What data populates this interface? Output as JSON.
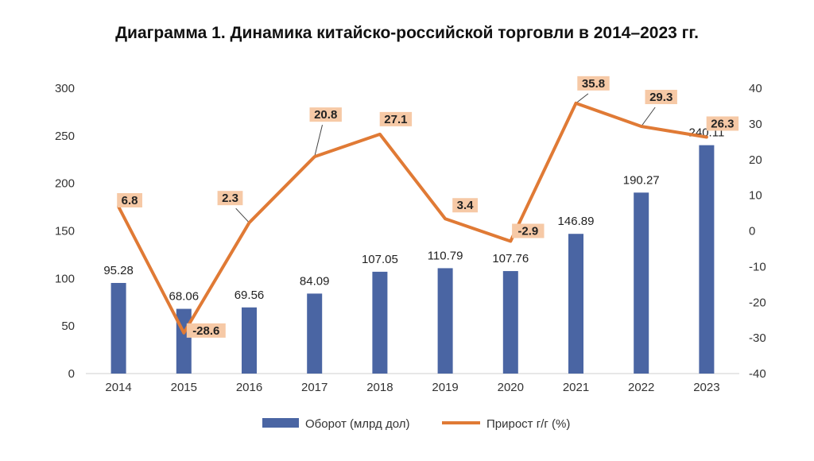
{
  "chart_data": {
    "type": "bar",
    "title": "Диаграмма 1. Динамика китайско-российской торговли в 2014–2023 гг.",
    "categories": [
      "2014",
      "2015",
      "2016",
      "2017",
      "2018",
      "2019",
      "2020",
      "2021",
      "2022",
      "2023"
    ],
    "series": [
      {
        "name": "Оборот (млрд дол)",
        "type": "bar",
        "axis": "left",
        "color": "#4a65a3",
        "values": [
          95.28,
          68.06,
          69.56,
          84.09,
          107.05,
          110.79,
          107.76,
          146.89,
          190.27,
          240.11
        ],
        "labels": [
          "95.28",
          "68.06",
          "69.56",
          "84.09",
          "107.05",
          "110.79",
          "107.76",
          "146.89",
          "190.27",
          "240.11"
        ]
      },
      {
        "name": "Прирост г/г (%)",
        "type": "line",
        "axis": "right",
        "color": "#e07a35",
        "values": [
          6.8,
          -28.6,
          2.3,
          20.8,
          27.1,
          3.4,
          -2.9,
          35.8,
          29.3,
          26.3
        ],
        "labels": [
          "6.8",
          "-28.6",
          "2.3",
          "20.8",
          "27.1",
          "3.4",
          "-2.9",
          "35.8",
          "29.3",
          "26.3"
        ]
      }
    ],
    "y_left": {
      "ylim": [
        0,
        300
      ],
      "ticks": [
        "0",
        "50",
        "100",
        "150",
        "200",
        "250",
        "300"
      ]
    },
    "y_right": {
      "ylim": [
        -40,
        40
      ],
      "ticks": [
        "-40",
        "-30",
        "-20",
        "-10",
        "0",
        "10",
        "20",
        "30",
        "40"
      ]
    },
    "grid": false,
    "legend": "bottom"
  }
}
